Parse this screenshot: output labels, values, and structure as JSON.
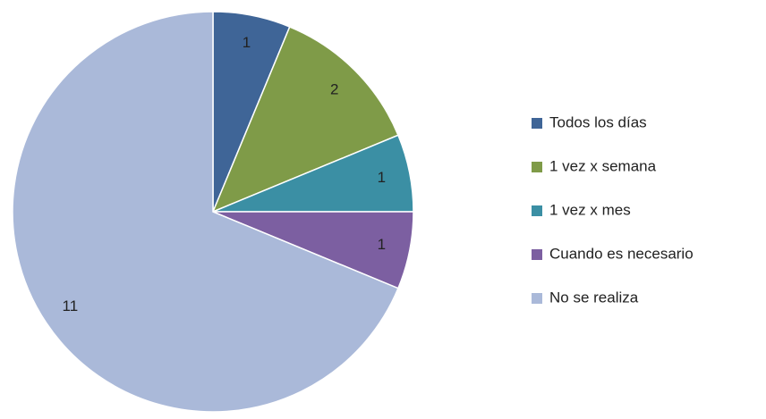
{
  "chart_data": {
    "type": "pie",
    "categories": [
      "Todos los días",
      "1 vez x semana",
      "1 vez x mes",
      "Cuando es necesario",
      "No se realiza"
    ],
    "values": [
      1,
      2,
      1,
      1,
      11
    ],
    "colors": [
      "#3f6597",
      "#7f9b48",
      "#3b8fa4",
      "#7c5fa1",
      "#aab9d9"
    ],
    "legend": "right"
  }
}
